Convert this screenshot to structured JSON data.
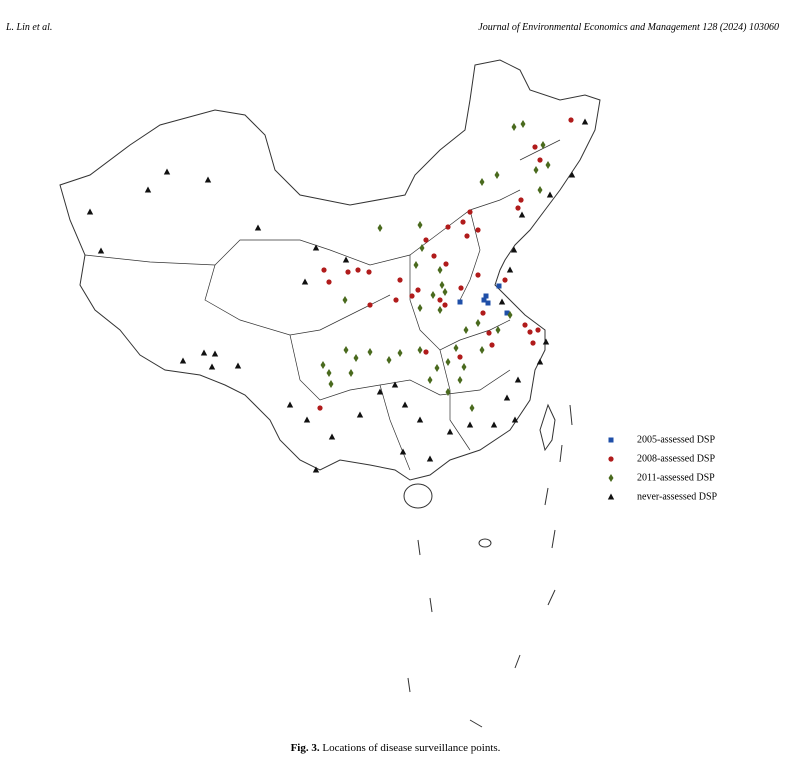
{
  "header": {
    "authors": "L. Lin et al.",
    "journal": "Journal of Environmental Economics and Management 128 (2024) 103060"
  },
  "figure": {
    "legend": [
      {
        "label": "2005-assessed DSP",
        "color": "#1f4fa8",
        "shape": "square"
      },
      {
        "label": "2008-assessed DSP",
        "color": "#b01b1b",
        "shape": "circle"
      },
      {
        "label": "2011-assessed DSP",
        "color": "#4a6a1e",
        "shape": "diamond"
      },
      {
        "label": "never-assessed DSP",
        "color": "#111111",
        "shape": "triangle"
      }
    ],
    "caption_label": "Fig. 3.",
    "caption_text": "Locations of disease surveillance points."
  }
}
